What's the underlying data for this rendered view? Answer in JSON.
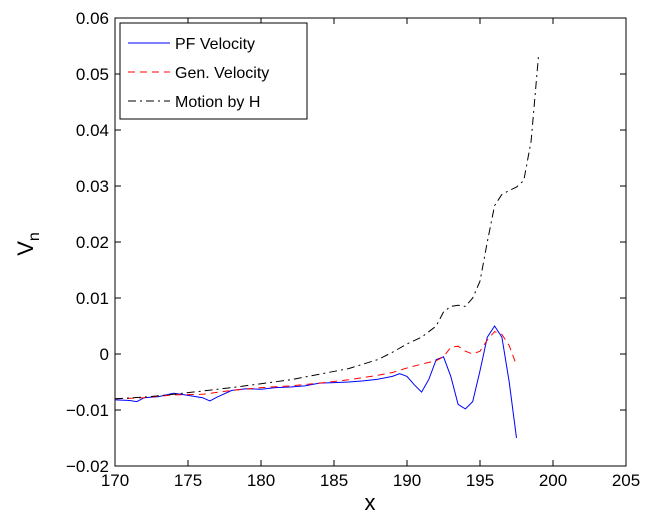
{
  "chart_data": {
    "type": "line",
    "title": "",
    "xlabel": "x",
    "ylabel": "V",
    "ylabel_subscript": "n",
    "xlim": [
      170,
      205
    ],
    "ylim": [
      -0.02,
      0.06
    ],
    "xticks": [
      170,
      175,
      180,
      185,
      190,
      195,
      200,
      205
    ],
    "yticks": [
      -0.02,
      -0.01,
      0,
      0.01,
      0.02,
      0.03,
      0.04,
      0.05,
      0.06
    ],
    "xtick_labels": [
      "170",
      "175",
      "180",
      "185",
      "190",
      "195",
      "200",
      "205"
    ],
    "ytick_labels": [
      "−0.02",
      "−0.01",
      "0",
      "0.01",
      "0.02",
      "0.03",
      "0.04",
      "0.05",
      "0.06"
    ],
    "grid": false,
    "legend_position": "top-left",
    "series": [
      {
        "name": "PF Velocity",
        "color": "#0000ff",
        "dash": "solid",
        "x": [
          170,
          171,
          171.5,
          172,
          173,
          174,
          174.5,
          175,
          176,
          176.5,
          177,
          178,
          179,
          180,
          181,
          182,
          183,
          184,
          185,
          186,
          187,
          188,
          189,
          189.5,
          190,
          190.5,
          191,
          191.5,
          192,
          192.5,
          193,
          193.5,
          194,
          194.5,
          195,
          195.5,
          196,
          196.5,
          197,
          197.5
        ],
        "y": [
          -0.0082,
          -0.0083,
          -0.0085,
          -0.0078,
          -0.0076,
          -0.007,
          -0.0072,
          -0.0074,
          -0.0078,
          -0.0084,
          -0.0077,
          -0.0065,
          -0.0062,
          -0.0063,
          -0.006,
          -0.0059,
          -0.0057,
          -0.0052,
          -0.0051,
          -0.005,
          -0.0048,
          -0.0045,
          -0.004,
          -0.0035,
          -0.004,
          -0.0055,
          -0.0068,
          -0.0045,
          -0.001,
          -0.0005,
          -0.004,
          -0.009,
          -0.0098,
          -0.0085,
          -0.003,
          0.003,
          0.005,
          0.003,
          -0.005,
          -0.015
        ]
      },
      {
        "name": "Gen. Velocity",
        "color": "#ff0000",
        "dash": "dashed",
        "x": [
          170,
          172,
          174,
          176,
          178,
          180,
          182,
          184,
          186,
          188,
          189,
          190,
          191,
          192,
          192.5,
          193,
          193.5,
          194,
          194.5,
          195,
          195.5,
          196,
          196.5,
          197,
          197.5
        ],
        "y": [
          -0.008,
          -0.0078,
          -0.0073,
          -0.0072,
          -0.0065,
          -0.006,
          -0.0057,
          -0.0052,
          -0.0046,
          -0.0038,
          -0.0033,
          -0.0025,
          -0.0018,
          -0.0012,
          -0.0005,
          0.0012,
          0.0014,
          0.0005,
          0.0,
          0.0005,
          0.0025,
          0.004,
          0.0035,
          0.0015,
          -0.002
        ]
      },
      {
        "name": "Motion by H",
        "color": "#000000",
        "dash": "dashdot",
        "x": [
          170,
          172,
          174,
          176,
          178,
          180,
          182,
          184,
          186,
          187,
          188,
          189,
          190,
          191,
          192,
          192.5,
          193,
          193.5,
          194,
          194.5,
          195,
          195.5,
          196,
          196.5,
          197,
          197.5,
          198,
          198.5,
          199
        ],
        "y": [
          -0.008,
          -0.0077,
          -0.0072,
          -0.0066,
          -0.006,
          -0.0053,
          -0.0046,
          -0.0036,
          -0.0026,
          -0.0018,
          -0.001,
          0.0003,
          0.0018,
          0.003,
          0.005,
          0.0075,
          0.0085,
          0.0087,
          0.0085,
          0.01,
          0.013,
          0.02,
          0.0265,
          0.0285,
          0.0292,
          0.0298,
          0.031,
          0.038,
          0.053
        ]
      }
    ]
  }
}
